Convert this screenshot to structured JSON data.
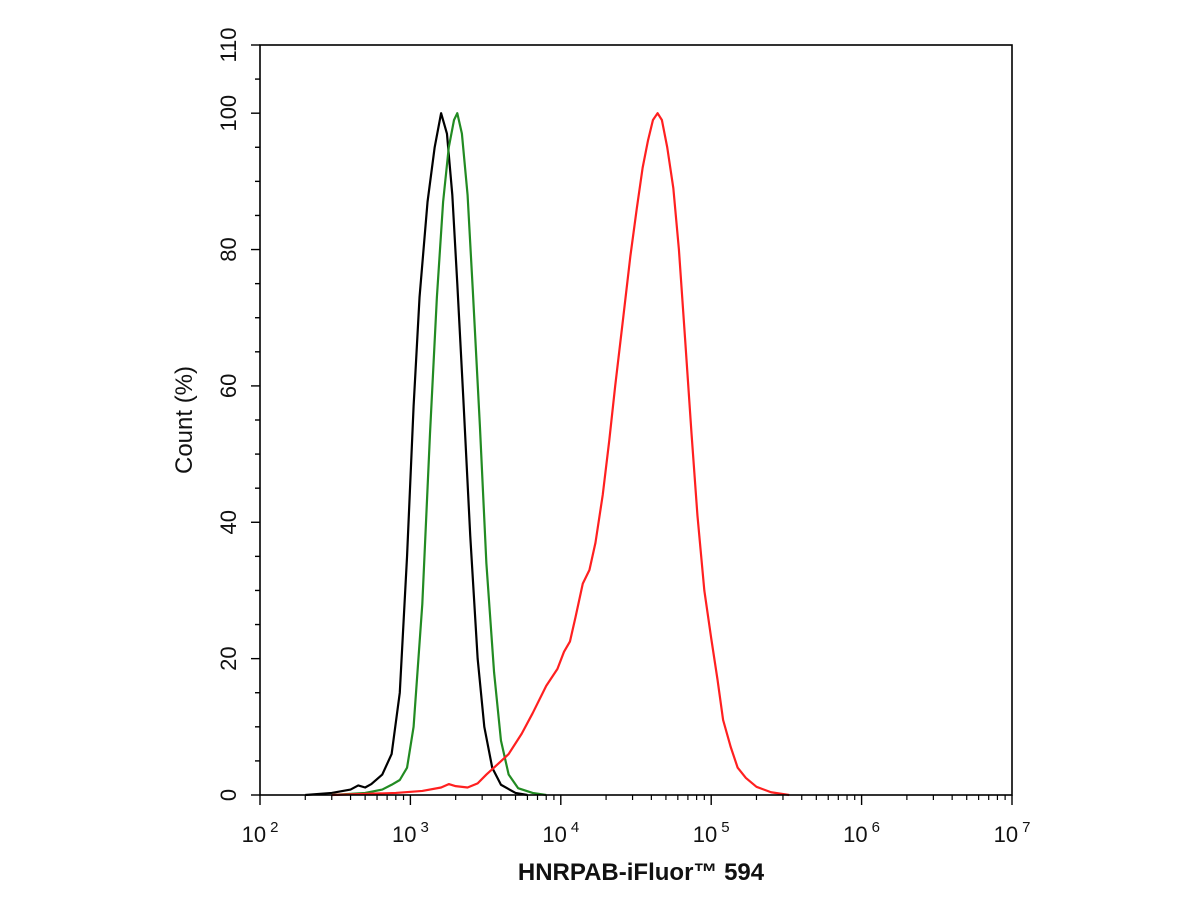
{
  "chart_data": {
    "type": "line",
    "title": "",
    "xlabel": "HNRPAB-iFluor™ 594",
    "ylabel": "Count  (%)",
    "xscale": "log",
    "xlim": [
      100,
      10000000
    ],
    "ylim": [
      0,
      110
    ],
    "y_ticks": [
      0,
      20,
      40,
      60,
      80,
      100,
      110
    ],
    "x_ticks": [
      {
        "value": 100,
        "base": "10",
        "exp": "2"
      },
      {
        "value": 1000,
        "base": "10",
        "exp": "3"
      },
      {
        "value": 10000,
        "base": "10",
        "exp": "4"
      },
      {
        "value": 100000,
        "base": "10",
        "exp": "5"
      },
      {
        "value": 1000000,
        "base": "10",
        "exp": "6"
      },
      {
        "value": 10000000,
        "base": "10",
        "exp": "7"
      }
    ],
    "grid": false,
    "legend": "none",
    "series": [
      {
        "color": "#000000",
        "points": [
          [
            200,
            0
          ],
          [
            300,
            0.3
          ],
          [
            400,
            0.8
          ],
          [
            450,
            1.4
          ],
          [
            500,
            1.1
          ],
          [
            550,
            1.6
          ],
          [
            650,
            3
          ],
          [
            750,
            6
          ],
          [
            850,
            15
          ],
          [
            950,
            35
          ],
          [
            1050,
            57
          ],
          [
            1150,
            73
          ],
          [
            1300,
            87
          ],
          [
            1450,
            95
          ],
          [
            1600,
            100
          ],
          [
            1750,
            97
          ],
          [
            1900,
            88
          ],
          [
            2050,
            75
          ],
          [
            2250,
            58
          ],
          [
            2500,
            38
          ],
          [
            2800,
            20
          ],
          [
            3100,
            10
          ],
          [
            3500,
            4
          ],
          [
            4000,
            1.5
          ],
          [
            5000,
            0.3
          ],
          [
            6000,
            0
          ]
        ]
      },
      {
        "color": "#228B22",
        "points": [
          [
            300,
            0
          ],
          [
            500,
            0.3
          ],
          [
            650,
            0.8
          ],
          [
            750,
            1.5
          ],
          [
            850,
            2.2
          ],
          [
            950,
            4
          ],
          [
            1050,
            10
          ],
          [
            1200,
            28
          ],
          [
            1350,
            53
          ],
          [
            1500,
            73
          ],
          [
            1650,
            87
          ],
          [
            1800,
            95
          ],
          [
            1950,
            99
          ],
          [
            2050,
            100
          ],
          [
            2200,
            97
          ],
          [
            2400,
            88
          ],
          [
            2600,
            74
          ],
          [
            2900,
            54
          ],
          [
            3200,
            34
          ],
          [
            3600,
            18
          ],
          [
            4000,
            8
          ],
          [
            4500,
            3
          ],
          [
            5200,
            1
          ],
          [
            6500,
            0.3
          ],
          [
            8000,
            0
          ]
        ]
      },
      {
        "color": "#FF2020",
        "points": [
          [
            300,
            0
          ],
          [
            800,
            0.3
          ],
          [
            1200,
            0.6
          ],
          [
            1600,
            1.1
          ],
          [
            1800,
            1.6
          ],
          [
            2000,
            1.3
          ],
          [
            2400,
            1.1
          ],
          [
            2800,
            1.7
          ],
          [
            3200,
            3
          ],
          [
            3800,
            4.5
          ],
          [
            4500,
            6
          ],
          [
            5500,
            9
          ],
          [
            6500,
            12
          ],
          [
            8000,
            16
          ],
          [
            9500,
            18.5
          ],
          [
            10500,
            21
          ],
          [
            11500,
            22.5
          ],
          [
            12500,
            26
          ],
          [
            14000,
            31
          ],
          [
            15500,
            33
          ],
          [
            17000,
            37
          ],
          [
            19000,
            44
          ],
          [
            21000,
            52
          ],
          [
            23000,
            60
          ],
          [
            26000,
            70
          ],
          [
            29000,
            79
          ],
          [
            32000,
            86
          ],
          [
            35000,
            92
          ],
          [
            38000,
            96
          ],
          [
            41000,
            99
          ],
          [
            44000,
            100
          ],
          [
            47000,
            99
          ],
          [
            51000,
            95
          ],
          [
            56000,
            89
          ],
          [
            61000,
            80
          ],
          [
            67000,
            67
          ],
          [
            74000,
            53
          ],
          [
            81000,
            41
          ],
          [
            90000,
            30
          ],
          [
            100000,
            23
          ],
          [
            110000,
            17
          ],
          [
            120000,
            11
          ],
          [
            135000,
            7
          ],
          [
            150000,
            4
          ],
          [
            170000,
            2.5
          ],
          [
            200000,
            1.2
          ],
          [
            250000,
            0.4
          ],
          [
            330000,
            0
          ]
        ]
      }
    ]
  }
}
